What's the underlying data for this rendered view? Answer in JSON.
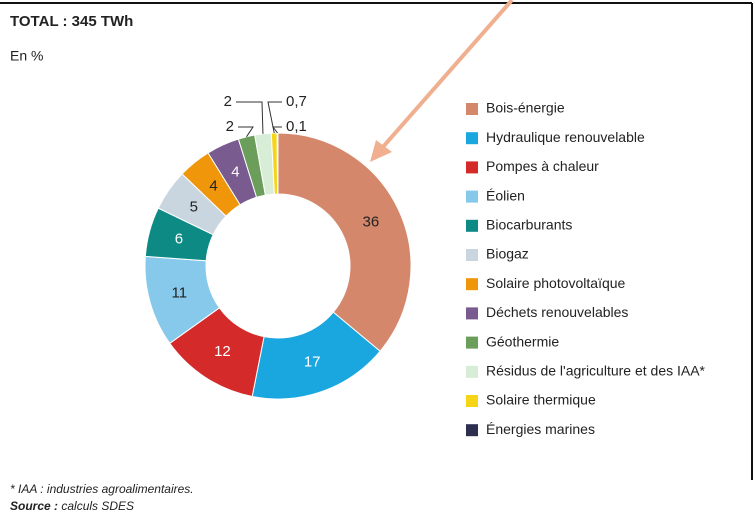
{
  "chart_data": {
    "type": "donut",
    "title": "TOTAL : 345 TWh",
    "subtitle": "En %",
    "categories": [
      "Bois-énergie",
      "Hydraulique renouvelable",
      "Pompes à chaleur",
      "Éolien",
      "Biocarburants",
      "Biogaz",
      "Solaire photovoltaïque",
      "Déchets renouvelables",
      "Géothermie",
      "Résidus de l'agriculture et des IAA*",
      "Solaire thermique",
      "Énergies marines"
    ],
    "values": [
      36,
      17,
      12,
      11,
      6,
      5,
      4,
      4,
      2,
      2,
      0.7,
      0.1
    ],
    "value_labels": [
      "36",
      "17",
      "12",
      "11",
      "6",
      "5",
      "4",
      "4",
      "2",
      "2",
      "0,7",
      "0,1"
    ],
    "colors": [
      "#d4876b",
      "#1aa7e0",
      "#d42a2a",
      "#86c9ea",
      "#0e8a85",
      "#c9d6e0",
      "#f0960a",
      "#7a5b8f",
      "#6a9e5a",
      "#d8edd6",
      "#f5d516",
      "#2e2e4e"
    ],
    "legend": "right",
    "footnote": "* IAA : industries agroalimentaires.",
    "source_label": "Source :",
    "source": "calculs SDES"
  }
}
